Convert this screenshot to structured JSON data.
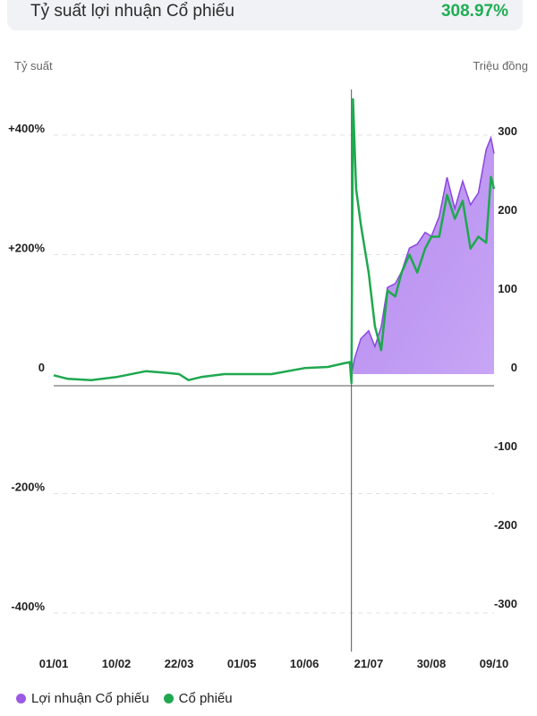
{
  "header": {
    "title": "Tỷ suất lợi nhuận Cổ phiếu",
    "value": "308.97%"
  },
  "axis_titles": {
    "left": "Tỷ suất",
    "right": "Triệu đồng"
  },
  "legend": [
    {
      "label": "Lợi nhuận Cổ phiếu",
      "color": "#9b59e6"
    },
    {
      "label": "Cổ phiếu",
      "color": "#1fa84f"
    }
  ],
  "chart_data": {
    "type": "line",
    "x_tick_labels": [
      "01/01",
      "10/02",
      "22/03",
      "01/05",
      "10/06",
      "21/07",
      "30/08",
      "09/10"
    ],
    "x_range": [
      "01/01",
      "09/10"
    ],
    "y_left": {
      "label": "Tỷ suất",
      "ticks": [
        "+400%",
        "+200%",
        "0",
        "-200%",
        "-400%"
      ],
      "range": [
        -450,
        450
      ]
    },
    "y_right": {
      "label": "Triệu đồng",
      "ticks": [
        "300",
        "200",
        "100",
        "0",
        "-100",
        "-200",
        "-300"
      ],
      "range": [
        -330,
        330
      ]
    },
    "grid": "dashed-horizontal",
    "legend_position": "bottom-left",
    "crosshair_date": "10/07",
    "series": [
      {
        "name": "Lợi nhuận Cổ phiếu",
        "type": "area",
        "axis": "right",
        "color": "#9b59e6",
        "points": [
          [
            "10/07",
            0
          ],
          [
            "12/07",
            20
          ],
          [
            "16/07",
            45
          ],
          [
            "21/07",
            55
          ],
          [
            "25/07",
            35
          ],
          [
            "29/07",
            60
          ],
          [
            "02/08",
            110
          ],
          [
            "07/08",
            115
          ],
          [
            "11/08",
            130
          ],
          [
            "16/08",
            160
          ],
          [
            "21/08",
            165
          ],
          [
            "26/08",
            180
          ],
          [
            "30/08",
            175
          ],
          [
            "04/09",
            200
          ],
          [
            "09/09",
            250
          ],
          [
            "14/09",
            210
          ],
          [
            "19/09",
            245
          ],
          [
            "24/09",
            215
          ],
          [
            "29/09",
            230
          ],
          [
            "04/10",
            285
          ],
          [
            "07/10",
            300
          ],
          [
            "09/10",
            280
          ]
        ]
      },
      {
        "name": "Cổ phiếu",
        "type": "line",
        "axis": "left",
        "color": "#1fa84f",
        "points": [
          [
            "01/01",
            -2
          ],
          [
            "10/01",
            -8
          ],
          [
            "25/01",
            -10
          ],
          [
            "10/02",
            -5
          ],
          [
            "01/03",
            5
          ],
          [
            "15/03",
            2
          ],
          [
            "22/03",
            0
          ],
          [
            "28/03",
            -10
          ],
          [
            "05/04",
            -5
          ],
          [
            "20/04",
            0
          ],
          [
            "01/05",
            0
          ],
          [
            "20/05",
            0
          ],
          [
            "10/06",
            10
          ],
          [
            "25/06",
            12
          ],
          [
            "05/07",
            18
          ],
          [
            "09/07",
            20
          ],
          [
            "10/07",
            -15
          ],
          [
            "11/07",
            460
          ],
          [
            "13/07",
            310
          ],
          [
            "16/07",
            250
          ],
          [
            "21/07",
            170
          ],
          [
            "25/07",
            80
          ],
          [
            "29/07",
            40
          ],
          [
            "02/08",
            140
          ],
          [
            "07/08",
            130
          ],
          [
            "11/08",
            170
          ],
          [
            "16/08",
            200
          ],
          [
            "21/08",
            170
          ],
          [
            "26/08",
            210
          ],
          [
            "30/08",
            230
          ],
          [
            "04/09",
            230
          ],
          [
            "09/09",
            300
          ],
          [
            "14/09",
            260
          ],
          [
            "19/09",
            290
          ],
          [
            "24/09",
            210
          ],
          [
            "29/09",
            230
          ],
          [
            "04/10",
            220
          ],
          [
            "07/10",
            330
          ],
          [
            "09/10",
            310
          ]
        ]
      }
    ]
  }
}
